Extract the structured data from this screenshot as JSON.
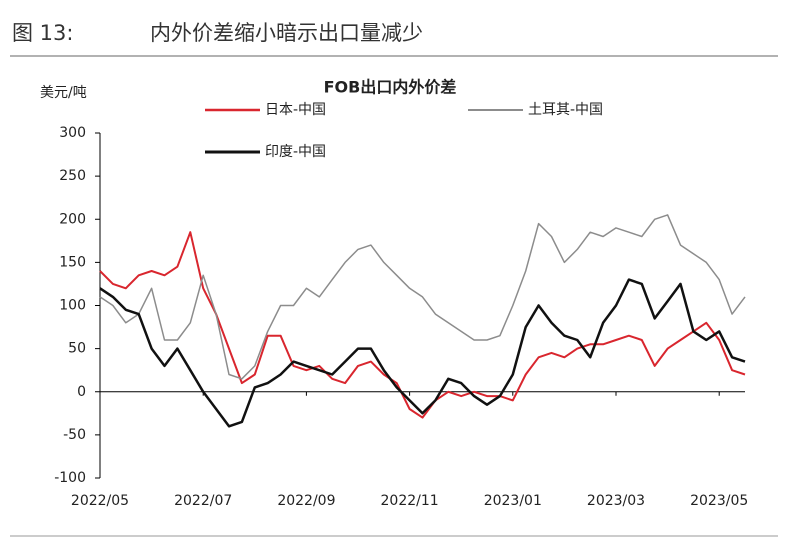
{
  "figure_label": "图 13:",
  "figure_title": "内外价差缩小暗示出口量减少",
  "chart_data": {
    "type": "line",
    "title": "FOB出口内外价差",
    "y_label": "美元/吨",
    "categories": [
      "2022/05",
      null,
      null,
      null,
      null,
      null,
      null,
      null,
      "2022/07",
      null,
      null,
      null,
      null,
      null,
      null,
      null,
      "2022/09",
      null,
      null,
      null,
      null,
      null,
      null,
      null,
      "2022/11",
      null,
      null,
      null,
      null,
      null,
      null,
      null,
      "2023/01",
      null,
      null,
      null,
      null,
      null,
      null,
      null,
      "2023/03",
      null,
      null,
      null,
      null,
      null,
      null,
      null,
      "2023/05",
      null,
      null
    ],
    "series": [
      {
        "name": "日本-中国",
        "color": "#d9262e",
        "width": 2,
        "values": [
          140,
          125,
          120,
          135,
          140,
          135,
          145,
          185,
          120,
          90,
          50,
          10,
          20,
          65,
          65,
          30,
          25,
          30,
          15,
          10,
          30,
          35,
          20,
          10,
          -20,
          -30,
          -10,
          0,
          -5,
          0,
          -5,
          -5,
          -10,
          20,
          40,
          45,
          40,
          50,
          55,
          55,
          60,
          65,
          60,
          30,
          50,
          60,
          70,
          80,
          60,
          25,
          20
        ]
      },
      {
        "name": "土耳其-中国",
        "color": "#8c8c8c",
        "width": 1.5,
        "values": [
          110,
          100,
          80,
          90,
          120,
          60,
          60,
          80,
          135,
          90,
          20,
          15,
          30,
          70,
          100,
          100,
          120,
          110,
          130,
          150,
          165,
          170,
          150,
          135,
          120,
          110,
          90,
          80,
          70,
          60,
          60,
          65,
          100,
          140,
          195,
          180,
          150,
          165,
          185,
          180,
          190,
          185,
          180,
          200,
          205,
          170,
          160,
          150,
          130,
          90,
          110
        ]
      },
      {
        "name": "印度-中国",
        "color": "#111111",
        "width": 2.5,
        "values": [
          120,
          110,
          95,
          90,
          50,
          30,
          50,
          25,
          0,
          -20,
          -40,
          -35,
          5,
          10,
          20,
          35,
          30,
          25,
          20,
          35,
          50,
          50,
          25,
          5,
          -10,
          -25,
          -10,
          15,
          10,
          -5,
          -15,
          -5,
          20,
          75,
          100,
          80,
          65,
          60,
          40,
          80,
          100,
          130,
          125,
          85,
          105,
          125,
          70,
          60,
          70,
          40,
          35
        ]
      }
    ],
    "ylim": [
      -100,
      300
    ],
    "yticks": [
      -100,
      -50,
      0,
      50,
      100,
      150,
      200,
      250,
      300
    ],
    "grid": false
  }
}
